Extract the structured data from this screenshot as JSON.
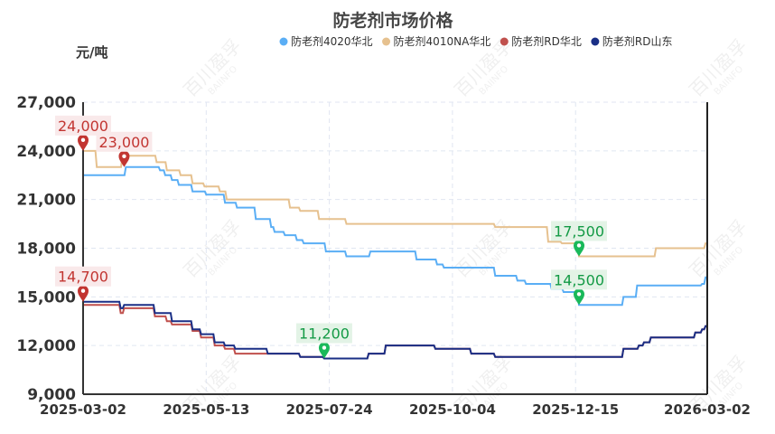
{
  "chart_data": {
    "type": "line",
    "title": "防老剂市场价格",
    "ylabel": "元/吨",
    "ylim": [
      9000,
      27000
    ],
    "yticks": [
      9000,
      12000,
      15000,
      18000,
      21000,
      24000,
      27000
    ],
    "xlim": [
      "2025-03-02",
      "2026-03-02"
    ],
    "xticks": [
      "2025-03-02",
      "2025-05-13",
      "2025-07-24",
      "2025-10-04",
      "2025-12-15",
      "2026-03-02"
    ],
    "grid": true,
    "legend_position": "top",
    "step": true,
    "series": [
      {
        "name": "防老剂4020华北",
        "color": "#5aaef5",
        "points": [
          [
            "2025-03-02",
            22500
          ],
          [
            "2025-03-27",
            23000
          ],
          [
            "2025-04-16",
            22800
          ],
          [
            "2025-04-19",
            22500
          ],
          [
            "2025-04-23",
            22200
          ],
          [
            "2025-04-27",
            21900
          ],
          [
            "2025-05-05",
            21500
          ],
          [
            "2025-05-13",
            21300
          ],
          [
            "2025-05-24",
            20800
          ],
          [
            "2025-05-31",
            20500
          ],
          [
            "2025-06-11",
            19800
          ],
          [
            "2025-06-20",
            19300
          ],
          [
            "2025-06-22",
            19000
          ],
          [
            "2025-06-28",
            18800
          ],
          [
            "2025-07-05",
            18500
          ],
          [
            "2025-07-09",
            18300
          ],
          [
            "2025-07-22",
            17800
          ],
          [
            "2025-08-03",
            17500
          ],
          [
            "2025-08-17",
            17800
          ],
          [
            "2025-09-13",
            17300
          ],
          [
            "2025-09-25",
            17000
          ],
          [
            "2025-09-29",
            16800
          ],
          [
            "2025-10-29",
            16300
          ],
          [
            "2025-11-11",
            16000
          ],
          [
            "2025-11-16",
            15800
          ],
          [
            "2025-12-01",
            15500
          ],
          [
            "2025-12-08",
            15300
          ],
          [
            "2025-12-15",
            15100
          ],
          [
            "2025-12-17",
            14500
          ],
          [
            "2026-01-12",
            15000
          ],
          [
            "2026-01-20",
            15700
          ],
          [
            "2026-02-27",
            15800
          ],
          [
            "2026-03-01",
            16200
          ],
          [
            "2026-03-02",
            16200
          ]
        ]
      },
      {
        "name": "防老剂4010NA华北",
        "color": "#e6c18f",
        "points": [
          [
            "2025-03-02",
            24000
          ],
          [
            "2025-03-10",
            23000
          ],
          [
            "2025-03-25",
            23700
          ],
          [
            "2025-04-14",
            23300
          ],
          [
            "2025-04-20",
            22800
          ],
          [
            "2025-04-28",
            22500
          ],
          [
            "2025-05-05",
            22000
          ],
          [
            "2025-05-12",
            21800
          ],
          [
            "2025-05-21",
            21500
          ],
          [
            "2025-05-25",
            21000
          ],
          [
            "2025-07-01",
            20500
          ],
          [
            "2025-07-07",
            20300
          ],
          [
            "2025-07-18",
            19800
          ],
          [
            "2025-08-03",
            19500
          ],
          [
            "2025-10-29",
            19300
          ],
          [
            "2025-11-29",
            18400
          ],
          [
            "2025-12-07",
            18300
          ],
          [
            "2025-12-17",
            17500
          ],
          [
            "2026-01-31",
            18000
          ],
          [
            "2026-03-01",
            18300
          ],
          [
            "2026-03-02",
            18300
          ]
        ]
      },
      {
        "name": "防老剂RD华北",
        "color": "#c0504d",
        "points": [
          [
            "2025-03-02",
            14500
          ],
          [
            "2025-03-24",
            14000
          ],
          [
            "2025-03-26",
            14300
          ],
          [
            "2025-04-13",
            13800
          ],
          [
            "2025-04-20",
            13500
          ],
          [
            "2025-04-23",
            13300
          ],
          [
            "2025-05-05",
            12900
          ],
          [
            "2025-05-10",
            12500
          ],
          [
            "2025-05-18",
            12000
          ],
          [
            "2025-05-24",
            11800
          ],
          [
            "2025-05-30",
            11500
          ],
          [
            "2025-07-07",
            11300
          ],
          [
            "2025-07-21",
            11200
          ],
          [
            "2025-08-16",
            11500
          ],
          [
            "2025-08-26",
            12000
          ],
          [
            "2025-09-24",
            11800
          ],
          [
            "2025-10-15",
            11500
          ],
          [
            "2025-10-29",
            11300
          ],
          [
            "2026-01-12",
            11800
          ],
          [
            "2026-01-21",
            12000
          ],
          [
            "2026-01-24",
            12200
          ],
          [
            "2026-01-28",
            12500
          ],
          [
            "2026-02-23",
            12800
          ],
          [
            "2026-02-27",
            13000
          ],
          [
            "2026-03-01",
            13200
          ],
          [
            "2026-03-02",
            13200
          ]
        ]
      },
      {
        "name": "防老剂RD山东",
        "color": "#1a2f86",
        "points": [
          [
            "2025-03-02",
            14700
          ],
          [
            "2025-03-24",
            14300
          ],
          [
            "2025-03-26",
            14500
          ],
          [
            "2025-04-13",
            14000
          ],
          [
            "2025-04-23",
            13500
          ],
          [
            "2025-05-05",
            13000
          ],
          [
            "2025-05-10",
            12700
          ],
          [
            "2025-05-18",
            12200
          ],
          [
            "2025-05-24",
            12000
          ],
          [
            "2025-05-30",
            11800
          ],
          [
            "2025-06-18",
            11500
          ],
          [
            "2025-07-07",
            11300
          ],
          [
            "2025-07-21",
            11200
          ],
          [
            "2025-08-16",
            11500
          ],
          [
            "2025-08-26",
            12000
          ],
          [
            "2025-09-24",
            11800
          ],
          [
            "2025-10-15",
            11500
          ],
          [
            "2025-10-29",
            11300
          ],
          [
            "2026-01-12",
            11800
          ],
          [
            "2026-01-21",
            12000
          ],
          [
            "2026-01-24",
            12200
          ],
          [
            "2026-01-28",
            12500
          ],
          [
            "2026-02-23",
            12800
          ],
          [
            "2026-02-27",
            13000
          ],
          [
            "2026-03-01",
            13200
          ],
          [
            "2026-03-02",
            13200
          ]
        ]
      }
    ],
    "annotations": [
      {
        "label": "24,000",
        "date": "2025-03-02",
        "value": 24000,
        "kind": "max",
        "color": "#c23531"
      },
      {
        "label": "23,000",
        "date": "2025-03-26",
        "value": 23000,
        "kind": "max",
        "color": "#c23531"
      },
      {
        "label": "14,700",
        "date": "2025-03-02",
        "value": 14700,
        "kind": "max",
        "color": "#c23531"
      },
      {
        "label": "11,200",
        "date": "2025-07-21",
        "value": 11200,
        "kind": "min",
        "color": "#19b95a"
      },
      {
        "label": "17,500",
        "date": "2025-12-17",
        "value": 17500,
        "kind": "min",
        "color": "#19b95a"
      },
      {
        "label": "14,500",
        "date": "2025-12-17",
        "value": 14500,
        "kind": "min",
        "color": "#19b95a"
      }
    ]
  },
  "watermark": "百川盈孚 BAIINFO"
}
